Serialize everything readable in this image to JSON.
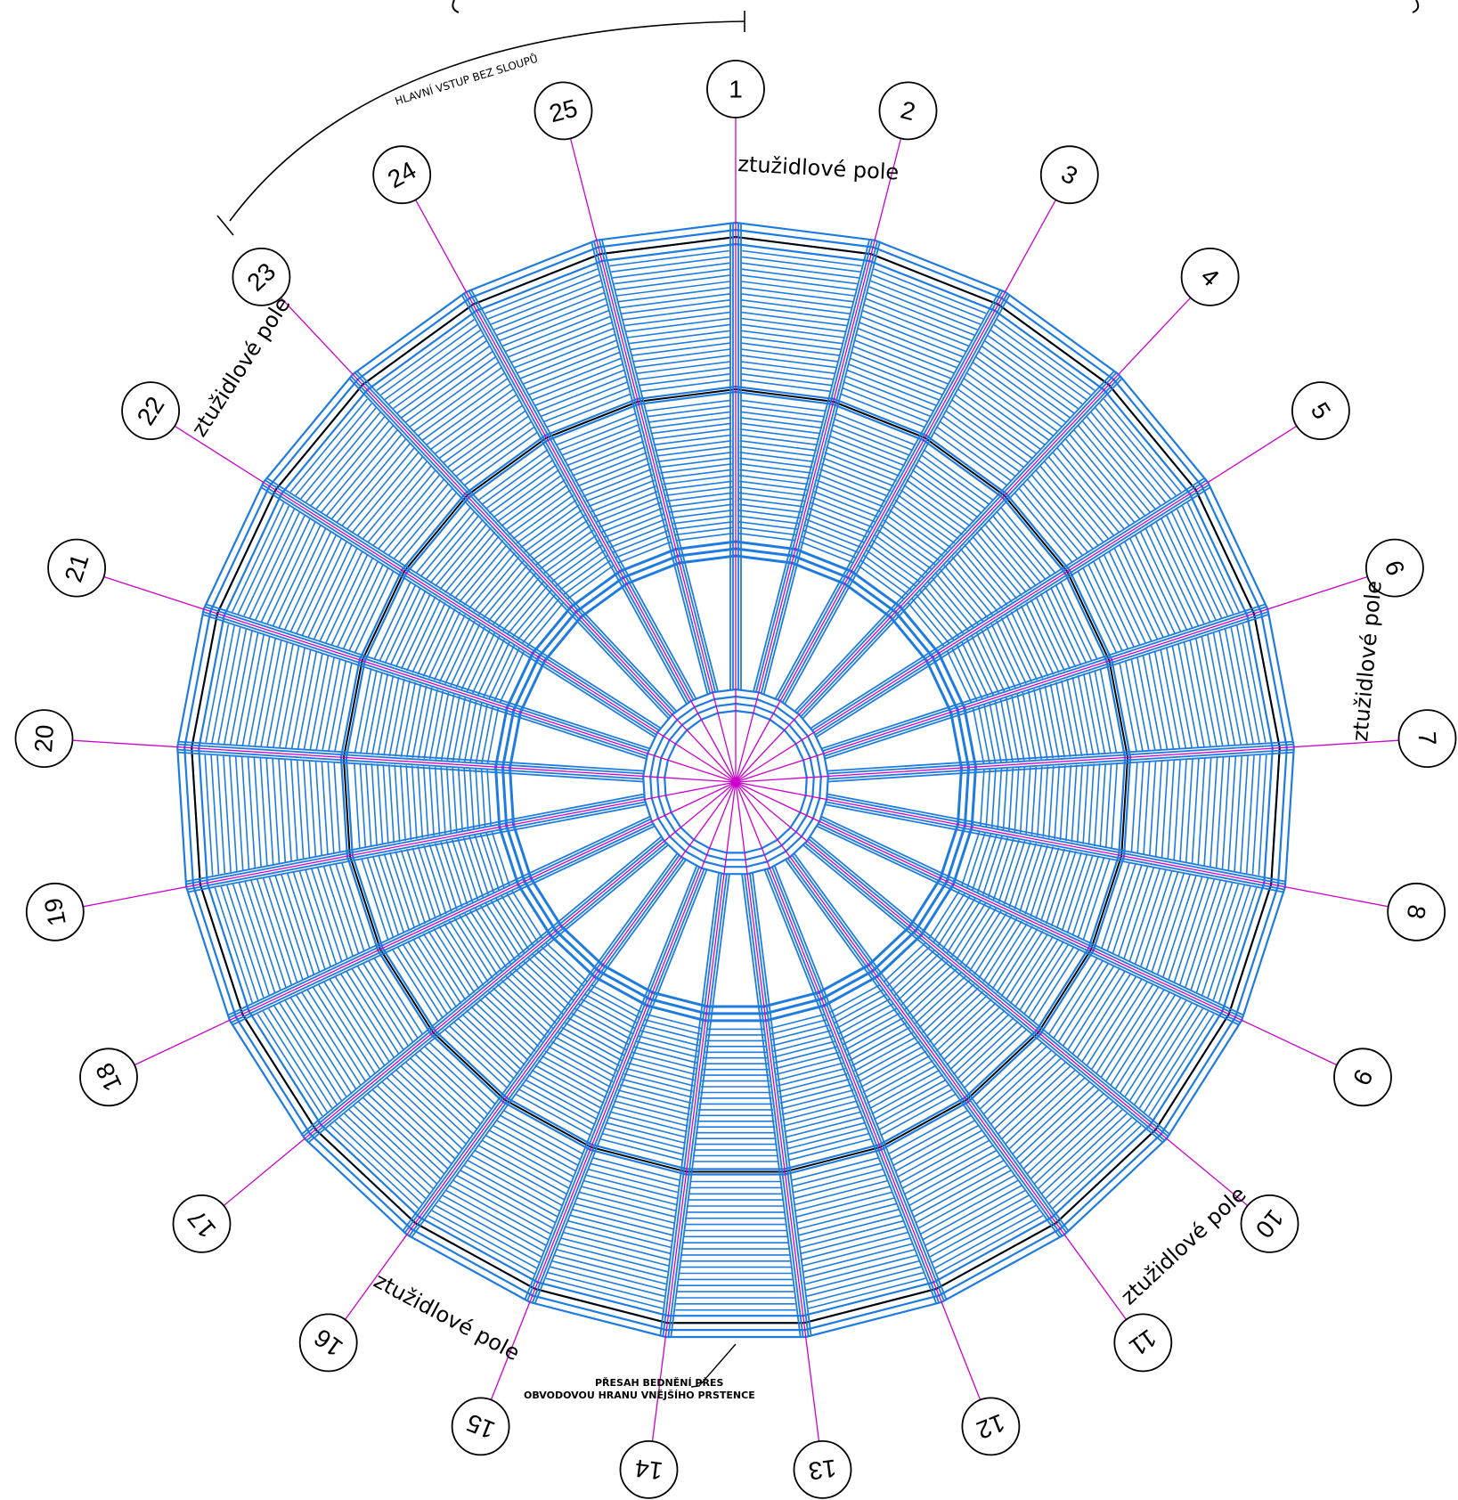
{
  "drawing": {
    "axis_count": 25,
    "axes": [
      "1",
      "2",
      "3",
      "4",
      "5",
      "6",
      "7",
      "8",
      "9",
      "10",
      "11",
      "12",
      "13",
      "14",
      "15",
      "16",
      "17",
      "18",
      "19",
      "20",
      "21",
      "22",
      "23",
      "24",
      "25"
    ],
    "bracing_label": "ztužidlové pole",
    "entrance_label": "HLAVNÍ VSTUP BEZ SLOUPŮ",
    "overhang_note_line1": "PŘESAH BEDNĚNÍ PŘES",
    "overhang_note_line2": "OBVODOVOU HRANU VNĚJŠÍHO PRSTENCE",
    "colors": {
      "structure": "#1e7be0",
      "axes": "#cc00cc",
      "ink": "#000000",
      "background": "#ffffff"
    },
    "icons": [
      "axis-bubble",
      "dimension-arc",
      "leader-arrow"
    ]
  }
}
